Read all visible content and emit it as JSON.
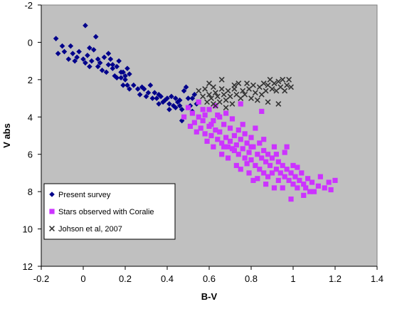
{
  "chart_data": {
    "type": "scatter",
    "title": "",
    "xlabel": "B-V",
    "ylabel": "V abs",
    "xlim": [
      -0.2,
      1.4
    ],
    "ylim": [
      12,
      -2
    ],
    "y_inverted": true,
    "x_ticks": [
      -0.2,
      0,
      0.2,
      0.4,
      0.6,
      0.8,
      1,
      1.2,
      1.4
    ],
    "x_tick_labels": [
      "-0.2",
      "0",
      "0.2",
      "0.4",
      "0.6",
      "0.8",
      "1",
      "1.2",
      "1.4"
    ],
    "y_ticks": [
      -2,
      0,
      2,
      4,
      6,
      8,
      10,
      12
    ],
    "y_tick_labels": [
      "-2",
      "0",
      "2",
      "4",
      "6",
      "8",
      "10",
      "12"
    ],
    "grid": false,
    "plot_background": "#c0c0c0",
    "legend_position": "bottom-left",
    "series": [
      {
        "name": "Present survey",
        "marker": "diamond",
        "color": "#00008b",
        "points": [
          [
            -0.13,
            -0.2
          ],
          [
            -0.1,
            0.2
          ],
          [
            -0.12,
            0.6
          ],
          [
            -0.09,
            0.5
          ],
          [
            -0.07,
            0.9
          ],
          [
            -0.05,
            0.6
          ],
          [
            -0.04,
            1.0
          ],
          [
            -0.03,
            0.8
          ],
          [
            -0.02,
            0.5
          ],
          [
            0.0,
            0.9
          ],
          [
            0.01,
            1.1
          ],
          [
            0.01,
            -0.9
          ],
          [
            0.02,
            0.7
          ],
          [
            0.03,
            1.3
          ],
          [
            0.04,
            1.0
          ],
          [
            0.05,
            0.4
          ],
          [
            0.06,
            -0.3
          ],
          [
            0.07,
            0.9
          ],
          [
            0.08,
            1.1
          ],
          [
            0.09,
            1.5
          ],
          [
            0.1,
            0.8
          ],
          [
            0.11,
            1.6
          ],
          [
            0.12,
            1.2
          ],
          [
            0.13,
            0.9
          ],
          [
            0.14,
            1.4
          ],
          [
            0.15,
            1.8
          ],
          [
            0.16,
            1.3
          ],
          [
            0.17,
            1.0
          ],
          [
            0.18,
            1.9
          ],
          [
            0.19,
            1.6
          ],
          [
            0.2,
            2.0
          ],
          [
            0.21,
            2.3
          ],
          [
            0.22,
            1.7
          ],
          [
            0.12,
            0.6
          ],
          [
            0.14,
            1.2
          ],
          [
            0.16,
            1.9
          ],
          [
            0.18,
            1.6
          ],
          [
            0.19,
            2.3
          ],
          [
            0.2,
            1.8
          ],
          [
            0.22,
            2.5
          ],
          [
            0.24,
            2.3
          ],
          [
            0.27,
            2.8
          ],
          [
            0.28,
            2.4
          ],
          [
            0.3,
            2.9
          ],
          [
            0.31,
            2.7
          ],
          [
            0.32,
            2.3
          ],
          [
            0.34,
            2.7
          ],
          [
            0.35,
            3.0
          ],
          [
            0.36,
            2.8
          ],
          [
            0.38,
            3.2
          ],
          [
            0.4,
            3.0
          ],
          [
            0.41,
            3.3
          ],
          [
            0.42,
            2.9
          ],
          [
            0.43,
            3.4
          ],
          [
            0.44,
            3.5
          ],
          [
            0.45,
            3.2
          ],
          [
            0.46,
            3.1
          ],
          [
            0.47,
            3.6
          ],
          [
            0.48,
            2.6
          ],
          [
            0.49,
            2.4
          ],
          [
            0.5,
            3.0
          ],
          [
            0.51,
            3.4
          ],
          [
            0.52,
            3.0
          ],
          [
            0.53,
            2.8
          ],
          [
            0.54,
            3.3
          ],
          [
            0.26,
            2.5
          ],
          [
            0.33,
            3.0
          ],
          [
            0.37,
            2.9
          ],
          [
            0.39,
            3.1
          ],
          [
            0.44,
            3.0
          ],
          [
            0.47,
            4.2
          ],
          [
            0.52,
            3.7
          ],
          [
            0.29,
            2.5
          ],
          [
            0.36,
            3.3
          ],
          [
            0.41,
            3.6
          ],
          [
            0.46,
            3.4
          ],
          [
            0.21,
            1.4
          ],
          [
            0.07,
            1.3
          ],
          [
            -0.06,
            0.2
          ],
          [
            0.03,
            0.3
          ]
        ]
      },
      {
        "name": "Stars observed with Coralie",
        "marker": "square",
        "color": "#cc33ff",
        "points": [
          [
            0.48,
            4.0
          ],
          [
            0.5,
            3.5
          ],
          [
            0.52,
            3.8
          ],
          [
            0.53,
            4.3
          ],
          [
            0.55,
            4.0
          ],
          [
            0.55,
            3.2
          ],
          [
            0.56,
            4.6
          ],
          [
            0.57,
            4.2
          ],
          [
            0.58,
            4.9
          ],
          [
            0.58,
            3.9
          ],
          [
            0.6,
            4.5
          ],
          [
            0.6,
            3.6
          ],
          [
            0.61,
            5.0
          ],
          [
            0.62,
            4.2
          ],
          [
            0.63,
            4.7
          ],
          [
            0.63,
            3.4
          ],
          [
            0.64,
            5.2
          ],
          [
            0.65,
            4.0
          ],
          [
            0.65,
            4.8
          ],
          [
            0.66,
            5.4
          ],
          [
            0.67,
            4.4
          ],
          [
            0.68,
            5.1
          ],
          [
            0.68,
            3.8
          ],
          [
            0.69,
            5.6
          ],
          [
            0.7,
            4.6
          ],
          [
            0.7,
            5.3
          ],
          [
            0.71,
            4.1
          ],
          [
            0.72,
            5.8
          ],
          [
            0.72,
            5.0
          ],
          [
            0.73,
            5.5
          ],
          [
            0.74,
            4.7
          ],
          [
            0.74,
            6.0
          ],
          [
            0.75,
            5.2
          ],
          [
            0.76,
            5.7
          ],
          [
            0.76,
            4.4
          ],
          [
            0.77,
            6.2
          ],
          [
            0.78,
            5.4
          ],
          [
            0.78,
            6.5
          ],
          [
            0.79,
            5.9
          ],
          [
            0.8,
            5.1
          ],
          [
            0.8,
            6.3
          ],
          [
            0.81,
            5.6
          ],
          [
            0.82,
            6.6
          ],
          [
            0.82,
            4.6
          ],
          [
            0.83,
            6.0
          ],
          [
            0.84,
            5.4
          ],
          [
            0.84,
            6.8
          ],
          [
            0.85,
            6.2
          ],
          [
            0.86,
            5.8
          ],
          [
            0.86,
            7.0
          ],
          [
            0.87,
            6.4
          ],
          [
            0.88,
            6.0
          ],
          [
            0.88,
            7.2
          ],
          [
            0.89,
            6.6
          ],
          [
            0.9,
            6.2
          ],
          [
            0.9,
            7.0
          ],
          [
            0.91,
            5.6
          ],
          [
            0.92,
            6.8
          ],
          [
            0.93,
            6.4
          ],
          [
            0.93,
            7.4
          ],
          [
            0.94,
            7.0
          ],
          [
            0.95,
            6.6
          ],
          [
            0.96,
            7.2
          ],
          [
            0.96,
            5.9
          ],
          [
            0.97,
            6.8
          ],
          [
            0.98,
            7.4
          ],
          [
            0.99,
            7.0
          ],
          [
            1.0,
            7.6
          ],
          [
            1.0,
            6.6
          ],
          [
            1.01,
            7.2
          ],
          [
            1.02,
            7.8
          ],
          [
            1.03,
            7.4
          ],
          [
            1.04,
            7.0
          ],
          [
            1.05,
            7.6
          ],
          [
            1.05,
            8.2
          ],
          [
            1.06,
            7.8
          ],
          [
            1.07,
            7.3
          ],
          [
            1.08,
            8.0
          ],
          [
            1.09,
            7.5
          ],
          [
            1.1,
            8.0
          ],
          [
            1.12,
            7.7
          ],
          [
            1.13,
            7.2
          ],
          [
            1.15,
            7.8
          ],
          [
            1.17,
            7.5
          ],
          [
            1.18,
            7.9
          ],
          [
            1.2,
            7.4
          ],
          [
            0.51,
            4.5
          ],
          [
            0.54,
            4.8
          ],
          [
            0.59,
            5.3
          ],
          [
            0.62,
            5.6
          ],
          [
            0.66,
            6.0
          ],
          [
            0.69,
            6.2
          ],
          [
            0.73,
            6.6
          ],
          [
            0.75,
            6.8
          ],
          [
            0.79,
            7.0
          ],
          [
            0.83,
            7.3
          ],
          [
            0.87,
            7.6
          ],
          [
            0.91,
            7.8
          ],
          [
            0.71,
            5.7
          ],
          [
            0.64,
            3.9
          ],
          [
            0.57,
            3.6
          ],
          [
            0.75,
            3.3
          ],
          [
            0.85,
            3.7
          ],
          [
            0.97,
            5.6
          ],
          [
            1.02,
            6.7
          ],
          [
            0.95,
            7.8
          ],
          [
            0.99,
            8.4
          ],
          [
            0.81,
            7.4
          ],
          [
            0.77,
            4.9
          ],
          [
            0.86,
            5.2
          ],
          [
            0.92,
            6.0
          ],
          [
            0.67,
            5.6
          ],
          [
            0.61,
            4.4
          ],
          [
            0.8,
            5.6
          ]
        ]
      },
      {
        "name": "Johson et al, 2007",
        "marker": "x",
        "color": "#333333",
        "points": [
          [
            0.55,
            2.6
          ],
          [
            0.57,
            2.9
          ],
          [
            0.58,
            2.5
          ],
          [
            0.59,
            3.2
          ],
          [
            0.6,
            2.8
          ],
          [
            0.61,
            3.0
          ],
          [
            0.62,
            2.4
          ],
          [
            0.63,
            2.7
          ],
          [
            0.63,
            3.4
          ],
          [
            0.64,
            2.9
          ],
          [
            0.65,
            3.2
          ],
          [
            0.66,
            2.5
          ],
          [
            0.67,
            2.8
          ],
          [
            0.68,
            3.1
          ],
          [
            0.69,
            2.6
          ],
          [
            0.7,
            2.9
          ],
          [
            0.71,
            3.3
          ],
          [
            0.72,
            2.5
          ],
          [
            0.73,
            2.8
          ],
          [
            0.74,
            2.2
          ],
          [
            0.75,
            3.0
          ],
          [
            0.76,
            2.6
          ],
          [
            0.78,
            2.2
          ],
          [
            0.79,
            2.5
          ],
          [
            0.8,
            3.0
          ],
          [
            0.81,
            2.3
          ],
          [
            0.82,
            2.7
          ],
          [
            0.83,
            3.1
          ],
          [
            0.84,
            2.4
          ],
          [
            0.85,
            2.8
          ],
          [
            0.86,
            2.2
          ],
          [
            0.87,
            2.6
          ],
          [
            0.88,
            2.3
          ],
          [
            0.89,
            2.0
          ],
          [
            0.9,
            2.5
          ],
          [
            0.91,
            2.2
          ],
          [
            0.92,
            2.6
          ],
          [
            0.93,
            2.1
          ],
          [
            0.94,
            2.4
          ],
          [
            0.95,
            2.0
          ],
          [
            0.96,
            2.6
          ],
          [
            0.97,
            2.3
          ],
          [
            0.98,
            2.0
          ],
          [
            0.99,
            2.4
          ],
          [
            0.6,
            2.2
          ],
          [
            0.66,
            2.0
          ],
          [
            0.72,
            2.3
          ],
          [
            0.77,
            2.8
          ],
          [
            0.88,
            3.2
          ],
          [
            0.93,
            3.3
          ],
          [
            0.68,
            3.5
          ],
          [
            0.62,
            3.3
          ]
        ]
      }
    ]
  }
}
